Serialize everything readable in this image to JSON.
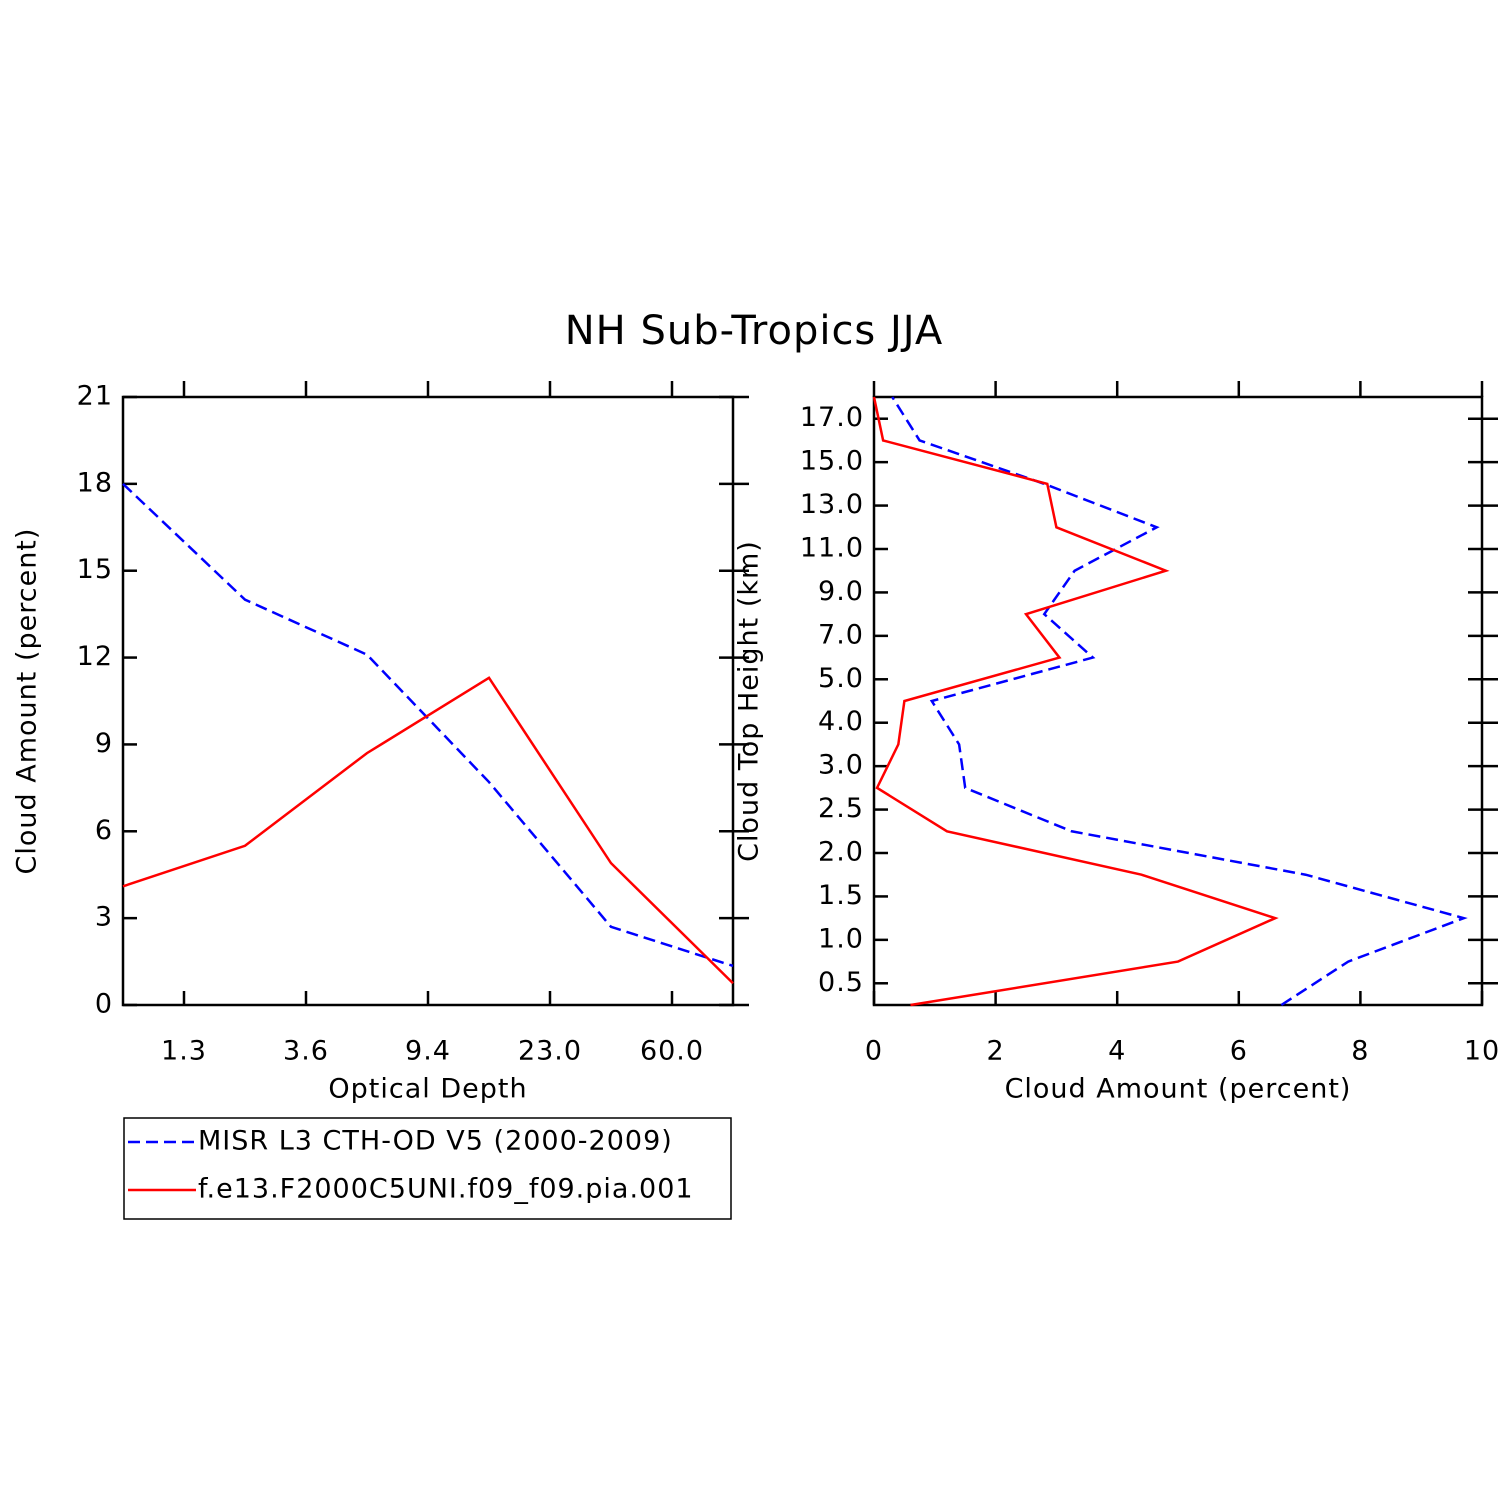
{
  "chart_data": [
    {
      "type": "line",
      "title": "NH Sub-Tropics JJA",
      "x": [
        0,
        1,
        2,
        3,
        4,
        5
      ],
      "xlim": [
        0,
        5
      ],
      "xticks": [
        {
          "value": 0.5,
          "label": "1.3"
        },
        {
          "value": 1.5,
          "label": "3.6"
        },
        {
          "value": 2.5,
          "label": "9.4"
        },
        {
          "value": 3.5,
          "label": "23.0"
        },
        {
          "value": 4.5,
          "label": "60.0"
        }
      ],
      "ylim": [
        0,
        21
      ],
      "yticks": [
        0,
        3,
        6,
        9,
        12,
        15,
        18,
        21
      ],
      "xlabel": "Optical Depth",
      "ylabel": "Cloud Amount (percent)",
      "legend": "below",
      "series": [
        {
          "name": "MISR L3 CTH-OD V5 (2000-2009)",
          "color": "#0000ff",
          "linestyle": "dashed",
          "values": [
            18.0,
            14.0,
            12.1,
            7.7,
            2.7,
            1.35
          ]
        },
        {
          "name": "f.e13.F2000C5UNI.f09_f09.pia.001",
          "color": "#ff0000",
          "linestyle": "solid",
          "values": [
            4.1,
            5.5,
            8.7,
            11.3,
            4.9,
            0.75
          ]
        }
      ]
    },
    {
      "type": "line",
      "orientation": "horizontal",
      "y": [
        0,
        1,
        2,
        3,
        4,
        5,
        6,
        7,
        8,
        9,
        10,
        11,
        12,
        13,
        14
      ],
      "ylim": [
        0,
        14
      ],
      "yticks": [
        {
          "value": 0.5,
          "label": "0.5"
        },
        {
          "value": 1.5,
          "label": "1.0"
        },
        {
          "value": 2.5,
          "label": "1.5"
        },
        {
          "value": 3.5,
          "label": "2.0"
        },
        {
          "value": 4.5,
          "label": "2.5"
        },
        {
          "value": 5.5,
          "label": "3.0"
        },
        {
          "value": 6.5,
          "label": "4.0"
        },
        {
          "value": 7.5,
          "label": "5.0"
        },
        {
          "value": 8.5,
          "label": "7.0"
        },
        {
          "value": 9.5,
          "label": "9.0"
        },
        {
          "value": 10.5,
          "label": "11.0"
        },
        {
          "value": 11.5,
          "label": "13.0"
        },
        {
          "value": 12.5,
          "label": "15.0"
        },
        {
          "value": 13.5,
          "label": "17.0"
        }
      ],
      "xlim": [
        0,
        10
      ],
      "xticks": [
        0,
        2,
        4,
        6,
        8,
        10
      ],
      "xlabel": "Cloud Amount (percent)",
      "ylabel": "Cloud Top Height (km)",
      "series": [
        {
          "color": "#0000ff",
          "linestyle": "dashed",
          "values": [
            6.7,
            7.8,
            9.7,
            7.1,
            3.25,
            1.5,
            1.4,
            0.95,
            3.6,
            2.8,
            3.3,
            4.65,
            2.8,
            0.75,
            0.3
          ]
        },
        {
          "color": "#ff0000",
          "linestyle": "solid",
          "values": [
            0.6,
            5.0,
            6.6,
            4.4,
            1.2,
            0.05,
            0.4,
            0.5,
            3.05,
            2.5,
            4.8,
            3.0,
            2.85,
            0.15,
            0.0
          ]
        }
      ]
    }
  ]
}
